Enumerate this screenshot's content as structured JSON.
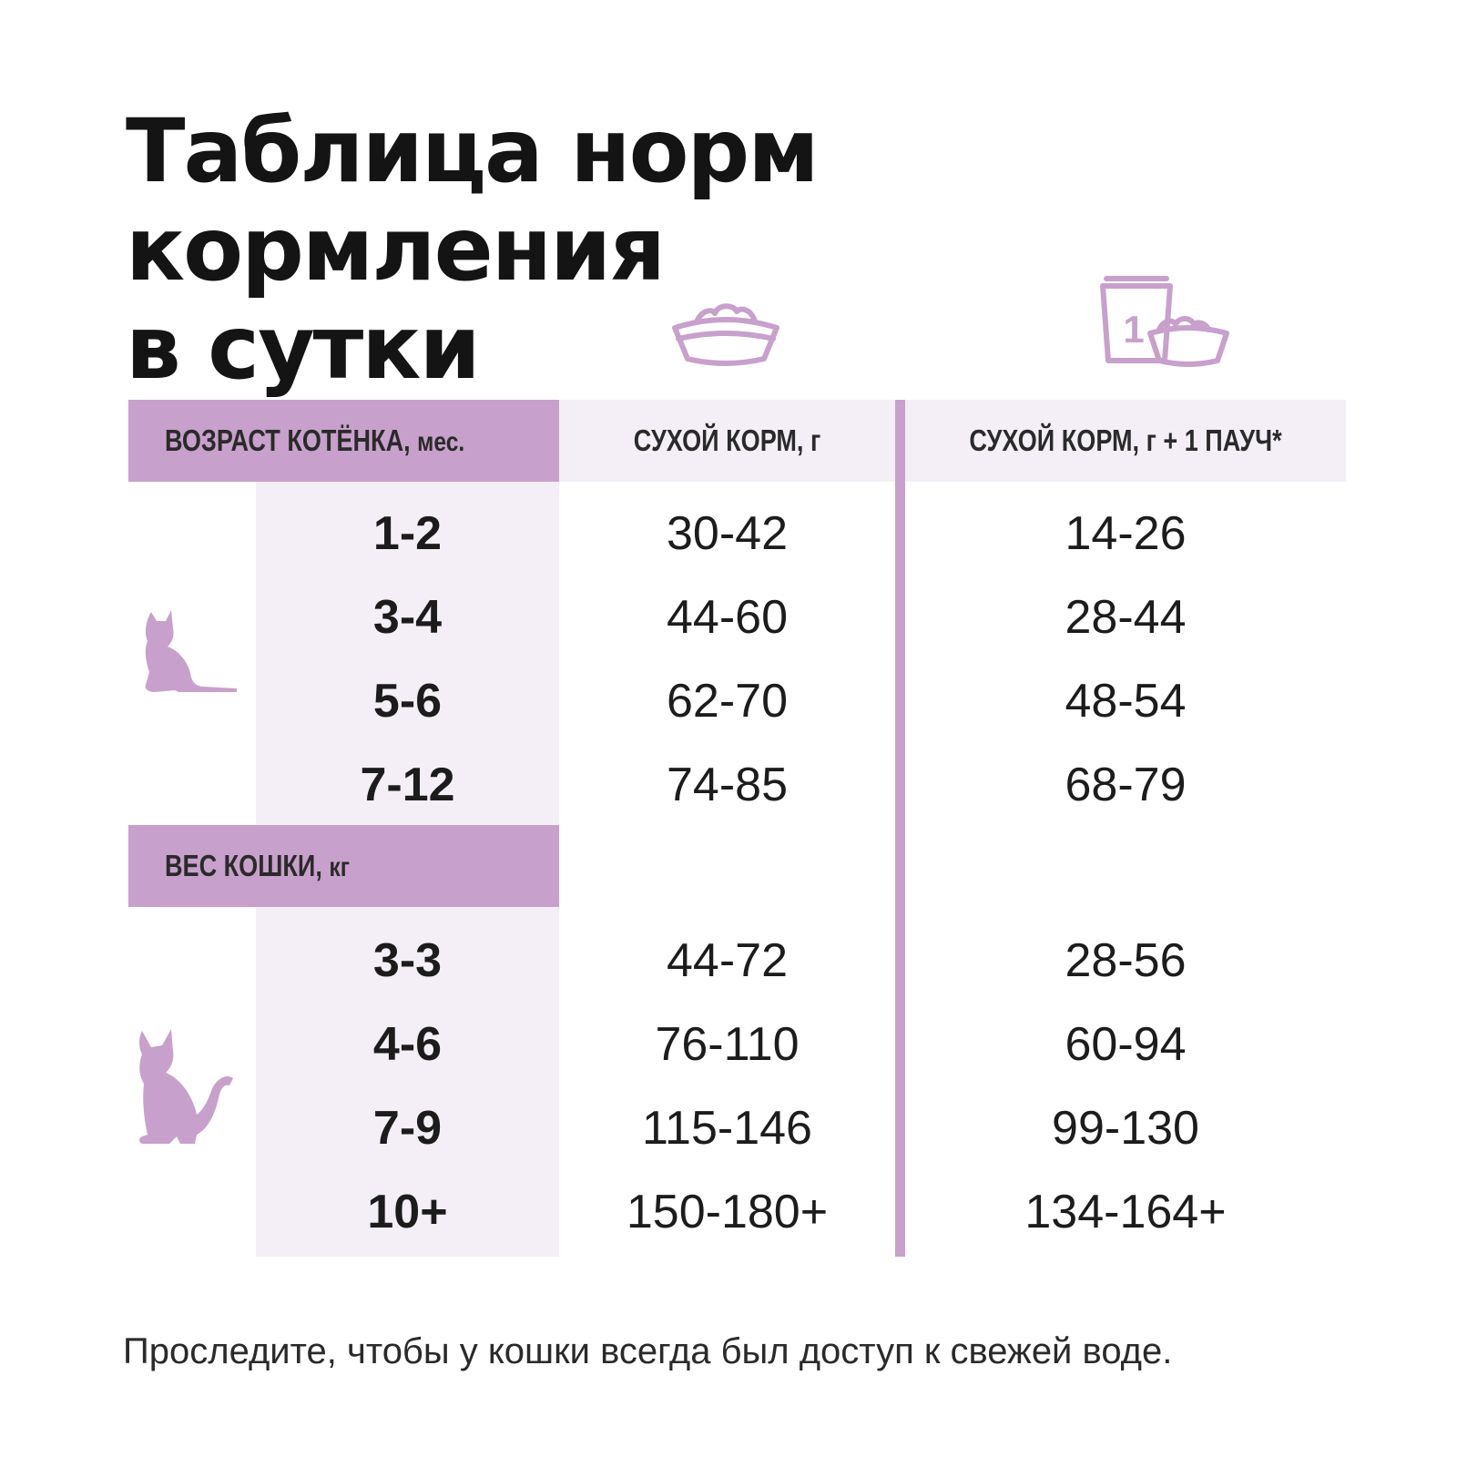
{
  "title": {
    "line1": "Таблица норм кормления",
    "line2": "в сутки"
  },
  "icons": {
    "dry_food": "food-bowl-icon",
    "dry_plus_pouch": "pouch-and-bowl-icon",
    "pouch_number": "1",
    "kitten": "kitten-silhouette-icon",
    "cat": "cat-silhouette-icon",
    "accent_color": "#c8a0cc",
    "band_color": "#f4eff6"
  },
  "headers": {
    "kitten_age_main": "ВОЗРАСТ КОТЁНКА,",
    "kitten_age_unit": "мес.",
    "dry_food": "СУХОЙ КОРМ, г",
    "dry_plus_pouch": "СУХОЙ КОРМ, г  + 1 ПАУЧ*",
    "cat_weight_main": "ВЕС КОШКИ,",
    "cat_weight_unit": "кг"
  },
  "kitten_rows": [
    {
      "age": "1-2",
      "dry": "30-42",
      "dry_pouch": "14-26"
    },
    {
      "age": "3-4",
      "dry": "44-60",
      "dry_pouch": "28-44"
    },
    {
      "age": "5-6",
      "dry": "62-70",
      "dry_pouch": "48-54"
    },
    {
      "age": "7-12",
      "dry": "74-85",
      "dry_pouch": "68-79"
    }
  ],
  "cat_rows": [
    {
      "weight": "3-3",
      "dry": "44-72",
      "dry_pouch": "28-56"
    },
    {
      "weight": "4-6",
      "dry": "76-110",
      "dry_pouch": "60-94"
    },
    {
      "weight": "7-9",
      "dry": "115-146",
      "dry_pouch": "99-130"
    },
    {
      "weight": "10+",
      "dry": "150-180+",
      "dry_pouch": "134-164+"
    }
  ],
  "footnote": "Проследите, чтобы у кошки всегда был доступ к свежей воде."
}
